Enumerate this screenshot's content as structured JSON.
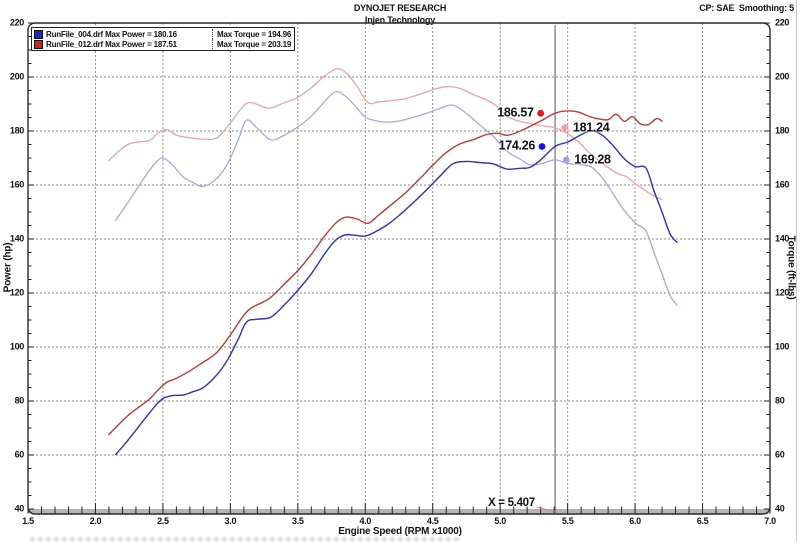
{
  "header": {
    "title": "DYNOJET RESEARCH",
    "subtitle": "Injen Technology",
    "right_info": "CP: SAE  Smoothing: 5"
  },
  "legend": {
    "runs": [
      {
        "file": "RunFile_004.drf",
        "power": "Max Power = 180.16",
        "torque": "Max Torque = 194.96",
        "chip_color": "#2222cc"
      },
      {
        "file": "RunFile_012.drf",
        "power": "Max Power = 187.51",
        "torque": "Max Torque = 203.19",
        "chip_color": "#cc2222"
      }
    ]
  },
  "cursor": {
    "label": "X = 5.407",
    "rpm": 5.407
  },
  "chart_data": {
    "type": "line",
    "title": "DYNOJET RESEARCH",
    "subtitle": "Injen Technology",
    "xlabel": "Engine Speed (RPM x1000)",
    "ylabel_left": "Power (hp)",
    "ylabel_right": "Torque (ft-lbs)",
    "xlim": [
      1.5,
      7.0
    ],
    "ylim": [
      40,
      220
    ],
    "x_tick_labels": [
      "1.5",
      "2.0",
      "2.5",
      "3.0",
      "3.5",
      "4.0",
      "4.5",
      "5.0",
      "5.5",
      "6.0",
      "6.5",
      "7.0"
    ],
    "y_tick_labels": [
      "40",
      "60",
      "80",
      "100",
      "120",
      "140",
      "160",
      "180",
      "200",
      "220"
    ],
    "x_major_step": 0.5,
    "x_minor_step": 0.1,
    "y_major_step": 20,
    "y_minor_step": 5,
    "grid": "dashed",
    "grid_color": "#8a8a8a",
    "cursor_x": 5.407,
    "series": [
      {
        "name": "RunFile_004.drf Torque",
        "axis": "right",
        "color": "#a8a8e0",
        "width": 1.3,
        "points": [
          [
            2.15,
            147
          ],
          [
            2.22,
            152
          ],
          [
            2.3,
            158
          ],
          [
            2.38,
            164
          ],
          [
            2.45,
            168.5
          ],
          [
            2.5,
            170
          ],
          [
            2.57,
            167.5
          ],
          [
            2.65,
            163
          ],
          [
            2.72,
            161
          ],
          [
            2.8,
            159.5
          ],
          [
            2.9,
            162.5
          ],
          [
            2.98,
            168
          ],
          [
            3.06,
            177
          ],
          [
            3.12,
            184
          ],
          [
            3.2,
            181
          ],
          [
            3.3,
            176.7
          ],
          [
            3.4,
            178.5
          ],
          [
            3.5,
            181.5
          ],
          [
            3.6,
            185.5
          ],
          [
            3.7,
            191
          ],
          [
            3.78,
            194.5
          ],
          [
            3.85,
            193
          ],
          [
            3.92,
            189.5
          ],
          [
            4.0,
            185.2
          ],
          [
            4.08,
            183.8
          ],
          [
            4.16,
            183.3
          ],
          [
            4.25,
            183.7
          ],
          [
            4.35,
            185
          ],
          [
            4.45,
            186.5
          ],
          [
            4.55,
            188.3
          ],
          [
            4.65,
            189.6
          ],
          [
            4.75,
            186.5
          ],
          [
            4.85,
            182.2
          ],
          [
            4.95,
            178
          ],
          [
            5.05,
            172.5
          ],
          [
            5.15,
            169.5
          ],
          [
            5.22,
            167.5
          ],
          [
            5.3,
            167.8
          ],
          [
            5.407,
            169.28
          ],
          [
            5.5,
            168
          ],
          [
            5.6,
            167.5
          ],
          [
            5.68,
            166.5
          ],
          [
            5.76,
            162.5
          ],
          [
            5.84,
            156.5
          ],
          [
            5.92,
            150.5
          ],
          [
            6.0,
            146
          ],
          [
            6.08,
            143
          ],
          [
            6.14,
            135
          ],
          [
            6.2,
            127
          ],
          [
            6.26,
            119
          ],
          [
            6.31,
            115.5
          ]
        ]
      },
      {
        "name": "RunFile_012.drf Torque",
        "axis": "right",
        "color": "#eba3a3",
        "width": 1.3,
        "points": [
          [
            2.1,
            169
          ],
          [
            2.16,
            172
          ],
          [
            2.24,
            175
          ],
          [
            2.32,
            176
          ],
          [
            2.4,
            176.5
          ],
          [
            2.47,
            179.5
          ],
          [
            2.53,
            180.5
          ],
          [
            2.6,
            178.5
          ],
          [
            2.7,
            177.5
          ],
          [
            2.8,
            177
          ],
          [
            2.9,
            177.5
          ],
          [
            3.0,
            183
          ],
          [
            3.1,
            189.5
          ],
          [
            3.16,
            190.5
          ],
          [
            3.24,
            189
          ],
          [
            3.3,
            188.5
          ],
          [
            3.4,
            190.5
          ],
          [
            3.5,
            192.5
          ],
          [
            3.6,
            196
          ],
          [
            3.7,
            200.5
          ],
          [
            3.79,
            203.0
          ],
          [
            3.86,
            201.5
          ],
          [
            3.94,
            196.5
          ],
          [
            4.02,
            190.5
          ],
          [
            4.1,
            190.8
          ],
          [
            4.2,
            191.3
          ],
          [
            4.3,
            192.0
          ],
          [
            4.4,
            193.5
          ],
          [
            4.5,
            195.3
          ],
          [
            4.6,
            196.4
          ],
          [
            4.7,
            195.8
          ],
          [
            4.8,
            193.5
          ],
          [
            4.9,
            191.5
          ],
          [
            4.98,
            189.0
          ],
          [
            5.05,
            185.5
          ],
          [
            5.12,
            184.0
          ],
          [
            5.2,
            183.0
          ],
          [
            5.3,
            182.0
          ],
          [
            5.407,
            181.24
          ],
          [
            5.5,
            179.0
          ],
          [
            5.58,
            176.0
          ],
          [
            5.65,
            172.5
          ],
          [
            5.72,
            169.5
          ],
          [
            5.8,
            166.5
          ],
          [
            5.88,
            164.0
          ],
          [
            5.94,
            163.0
          ],
          [
            6.0,
            160.5
          ],
          [
            6.06,
            158.5
          ],
          [
            6.12,
            156.5
          ],
          [
            6.2,
            154.5
          ]
        ]
      },
      {
        "name": "RunFile_004.drf Power",
        "axis": "left",
        "color": "#2f2fbe",
        "width": 1.4,
        "points": [
          [
            2.15,
            60.2
          ],
          [
            2.22,
            64.2
          ],
          [
            2.3,
            69.2
          ],
          [
            2.38,
            74.3
          ],
          [
            2.45,
            78.6
          ],
          [
            2.5,
            80.9
          ],
          [
            2.57,
            82.0
          ],
          [
            2.65,
            82.2
          ],
          [
            2.72,
            83.4
          ],
          [
            2.8,
            85.0
          ],
          [
            2.9,
            89.7
          ],
          [
            2.98,
            95.3
          ],
          [
            3.06,
            103.1
          ],
          [
            3.12,
            109.3
          ],
          [
            3.2,
            110.3
          ],
          [
            3.3,
            111.0
          ],
          [
            3.4,
            115.6
          ],
          [
            3.5,
            121.0
          ],
          [
            3.6,
            127.1
          ],
          [
            3.7,
            134.6
          ],
          [
            3.78,
            139.5
          ],
          [
            3.85,
            141.5
          ],
          [
            3.92,
            141.4
          ],
          [
            4.0,
            141.1
          ],
          [
            4.08,
            142.8
          ],
          [
            4.16,
            145.2
          ],
          [
            4.25,
            148.7
          ],
          [
            4.35,
            153.2
          ],
          [
            4.45,
            158.0
          ],
          [
            4.55,
            163.1
          ],
          [
            4.65,
            167.9
          ],
          [
            4.75,
            168.7
          ],
          [
            4.85,
            168.3
          ],
          [
            4.95,
            167.8
          ],
          [
            5.05,
            165.9
          ],
          [
            5.15,
            166.2
          ],
          [
            5.22,
            166.5
          ],
          [
            5.3,
            169.3
          ],
          [
            5.407,
            174.3
          ],
          [
            5.5,
            175.9
          ],
          [
            5.6,
            178.6
          ],
          [
            5.68,
            180.1
          ],
          [
            5.76,
            178.3
          ],
          [
            5.84,
            174.4
          ],
          [
            5.92,
            169.7
          ],
          [
            6.0,
            166.8
          ],
          [
            6.08,
            166.3
          ],
          [
            6.14,
            157.8
          ],
          [
            6.2,
            149.9
          ],
          [
            6.26,
            141.8
          ],
          [
            6.31,
            138.8
          ]
        ]
      },
      {
        "name": "RunFile_012.drf Power",
        "axis": "left",
        "color": "#c03636",
        "width": 1.4,
        "points": [
          [
            2.1,
            67.6
          ],
          [
            2.16,
            70.7
          ],
          [
            2.24,
            74.6
          ],
          [
            2.32,
            77.7
          ],
          [
            2.4,
            80.7
          ],
          [
            2.47,
            84.4
          ],
          [
            2.53,
            87.0
          ],
          [
            2.6,
            88.4
          ],
          [
            2.7,
            91.2
          ],
          [
            2.8,
            94.4
          ],
          [
            2.9,
            98.0
          ],
          [
            3.0,
            104.5
          ],
          [
            3.1,
            111.8
          ],
          [
            3.16,
            114.6
          ],
          [
            3.24,
            116.6
          ],
          [
            3.3,
            118.4
          ],
          [
            3.4,
            123.3
          ],
          [
            3.5,
            128.3
          ],
          [
            3.6,
            134.3
          ],
          [
            3.7,
            141.2
          ],
          [
            3.79,
            146.3
          ],
          [
            3.86,
            148.1
          ],
          [
            3.94,
            147.4
          ],
          [
            4.02,
            145.8
          ],
          [
            4.1,
            148.9
          ],
          [
            4.2,
            153.0
          ],
          [
            4.3,
            157.2
          ],
          [
            4.4,
            162.1
          ],
          [
            4.5,
            167.3
          ],
          [
            4.6,
            172.0
          ],
          [
            4.7,
            175.2
          ],
          [
            4.8,
            176.8
          ],
          [
            4.9,
            178.7
          ],
          [
            4.98,
            179.2
          ],
          [
            5.05,
            178.4
          ],
          [
            5.12,
            179.4
          ],
          [
            5.2,
            181.2
          ],
          [
            5.3,
            183.7
          ],
          [
            5.407,
            186.6
          ],
          [
            5.5,
            187.5
          ],
          [
            5.58,
            187.0
          ],
          [
            5.65,
            185.6
          ],
          [
            5.72,
            184.6
          ],
          [
            5.8,
            184.2
          ],
          [
            5.86,
            186.2
          ],
          [
            5.92,
            183.6
          ],
          [
            5.98,
            185.3
          ],
          [
            6.04,
            182.6
          ],
          [
            6.1,
            182.4
          ],
          [
            6.16,
            184.6
          ],
          [
            6.2,
            183.6
          ]
        ]
      }
    ],
    "annotations": [
      {
        "text": "186.57",
        "value": 186.57,
        "dot_rpm": 5.3,
        "dot_color": "#e81414",
        "text_side": "left"
      },
      {
        "text": "181.24",
        "value": 181.24,
        "dot_rpm": 5.48,
        "dot_color": "#f2a0a0",
        "text_side": "right"
      },
      {
        "text": "174.26",
        "value": 174.26,
        "dot_rpm": 5.31,
        "dot_color": "#1414e8",
        "text_side": "left"
      },
      {
        "text": "169.28",
        "value": 169.28,
        "dot_rpm": 5.49,
        "dot_color": "#a0a0f2",
        "text_side": "right"
      }
    ]
  }
}
